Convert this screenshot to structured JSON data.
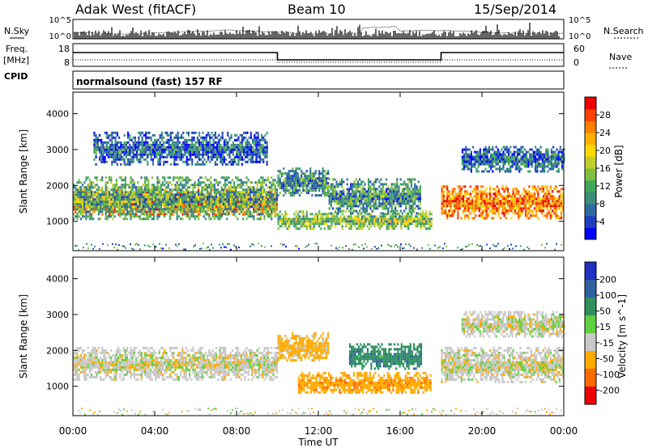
{
  "header": {
    "station": "Adak West (fitACF)",
    "beam": "Beam 10",
    "date": "15/Sep/2014"
  },
  "side_labels": {
    "nsky": "N.Sky",
    "nsearch": "N.Search",
    "freq": "Freq.",
    "freq_unit": "[MHz]",
    "nave": "Nave",
    "cpid": "CPID"
  },
  "noise_axis": {
    "left_ticks": [
      "10^5",
      "10^0"
    ],
    "right_ticks": [
      "10^5",
      "10^0"
    ]
  },
  "freq_axis": {
    "left_ticks": [
      "18",
      "8"
    ],
    "right_ticks": [
      "60",
      "0"
    ]
  },
  "cpid_text": "normalsound (fast) 157 RF",
  "time_axis": {
    "label": "Time UT",
    "ticks": [
      "00:00",
      "04:00",
      "08:00",
      "12:00",
      "16:00",
      "20:00",
      "00:00"
    ]
  },
  "chart_data": [
    {
      "type": "heatmap",
      "panel": "power",
      "ylabel": "Slant Range [km]",
      "yticks": [
        1000,
        2000,
        3000,
        4000
      ],
      "ylim": [
        180,
        4600
      ],
      "xlim_hours": [
        0,
        24
      ],
      "colorbar": {
        "label": "Power [dB]",
        "ticks": [
          4,
          8,
          12,
          16,
          20,
          24,
          28
        ],
        "range": [
          0,
          32
        ],
        "colors": [
          "#0000ff",
          "#1f3fbf",
          "#2f6ba0",
          "#3a8f7c",
          "#3fa95a",
          "#7fbf3f",
          "#bfcf2a",
          "#ffd800",
          "#ffb000",
          "#ff7f00",
          "#ff4000",
          "#ee0000"
        ]
      },
      "regions": [
        {
          "t0": 0.0,
          "t1": 10.0,
          "r0": 1200,
          "r1": 1900,
          "power": 26
        },
        {
          "t0": 0.0,
          "t1": 10.0,
          "r0": 1050,
          "r1": 2250,
          "power": 12
        },
        {
          "t0": 10.0,
          "t1": 12.5,
          "r0": 1700,
          "r1": 2500,
          "power": 10
        },
        {
          "t0": 10.0,
          "t1": 17.5,
          "r0": 800,
          "r1": 1300,
          "power": 14
        },
        {
          "t0": 12.5,
          "t1": 17.0,
          "r0": 1200,
          "r1": 2200,
          "power": 10
        },
        {
          "t0": 18.0,
          "t1": 24.0,
          "r0": 1100,
          "r1": 2000,
          "power": 25
        },
        {
          "t0": 19.0,
          "t1": 24.0,
          "r0": 2400,
          "r1": 3100,
          "power": 7
        },
        {
          "t0": 1.0,
          "t1": 9.5,
          "r0": 2600,
          "r1": 3500,
          "power": 6
        }
      ]
    },
    {
      "type": "heatmap",
      "panel": "velocity",
      "ylabel": "Slant Range [km]",
      "yticks": [
        1000,
        2000,
        3000,
        4000
      ],
      "ylim": [
        180,
        4600
      ],
      "xlim_hours": [
        0,
        24
      ],
      "colorbar": {
        "label": "Velocity [m s^-1]",
        "ticks": [
          200,
          100,
          50,
          15,
          -15,
          -50,
          -100,
          -200
        ],
        "colors": [
          "#2030c0",
          "#3060a0",
          "#2f8f5f",
          "#5fcf3f",
          "#c8c8c8",
          "#ffaa00",
          "#ff6a00",
          "#ee0000"
        ]
      },
      "regions": [
        {
          "t0": 0.0,
          "t1": 10.0,
          "r0": 1200,
          "r1": 2100,
          "velocity": 0
        },
        {
          "t0": 10.0,
          "t1": 12.5,
          "r0": 1700,
          "r1": 2500,
          "velocity": -30
        },
        {
          "t0": 11.0,
          "t1": 17.5,
          "r0": 800,
          "r1": 1400,
          "velocity": -60
        },
        {
          "t0": 13.5,
          "t1": 17.0,
          "r0": 1500,
          "r1": 2200,
          "velocity": 60
        },
        {
          "t0": 18.0,
          "t1": 24.0,
          "r0": 1100,
          "r1": 2100,
          "velocity": 0
        },
        {
          "t0": 19.0,
          "t1": 24.0,
          "r0": 2400,
          "r1": 3100,
          "velocity": 0
        }
      ]
    }
  ]
}
